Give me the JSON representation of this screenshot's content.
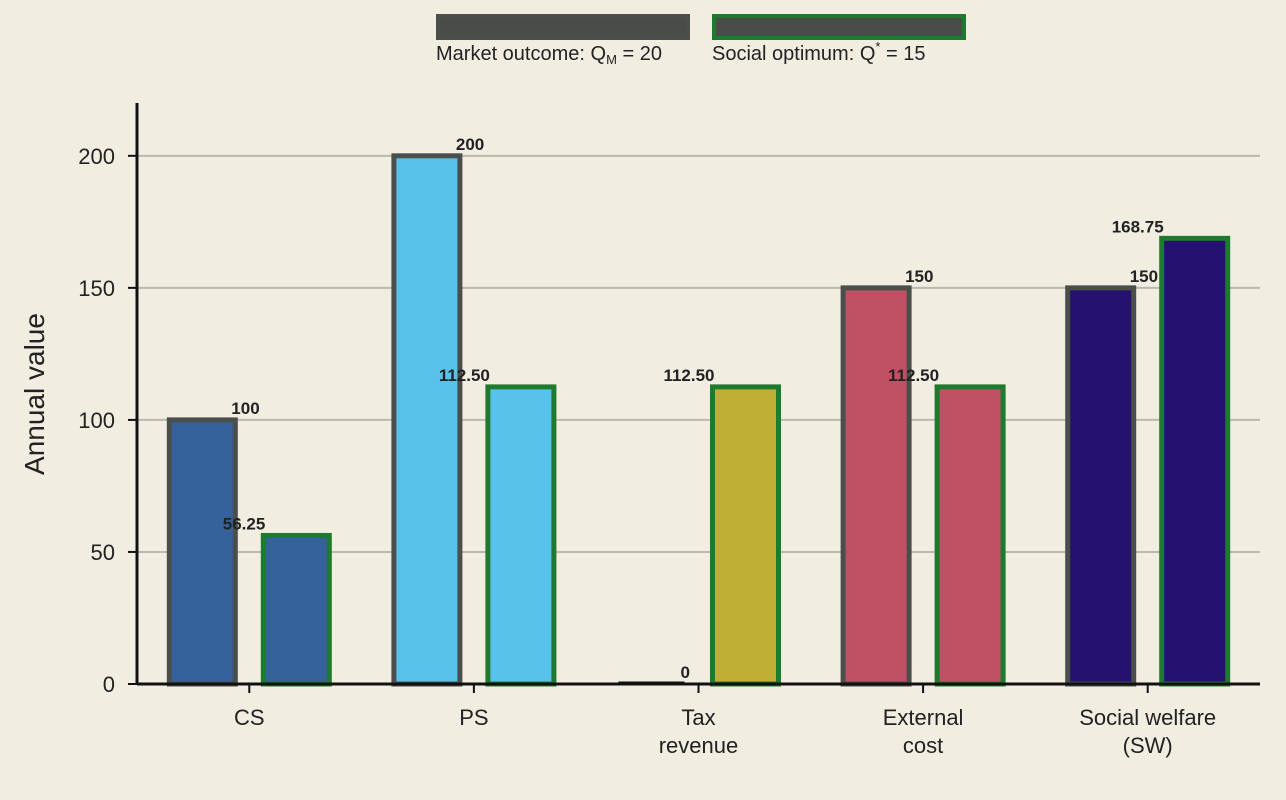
{
  "chart_data": {
    "type": "bar",
    "ylabel": "Annual value",
    "ylim": [
      0,
      220
    ],
    "yticks": [
      0,
      50,
      100,
      150,
      200
    ],
    "grid": true,
    "legend_position": "top-center",
    "categories": [
      {
        "lines": [
          "CS"
        ],
        "color": "#35629a"
      },
      {
        "lines": [
          "PS"
        ],
        "color": "#59c2eb"
      },
      {
        "lines": [
          "Tax",
          "revenue"
        ],
        "color": "#bfb035"
      },
      {
        "lines": [
          "External",
          "cost"
        ],
        "color": "#c05064"
      },
      {
        "lines": [
          "Social welfare",
          "(SW)"
        ],
        "color": "#241170"
      }
    ],
    "series": [
      {
        "name": "Market outcome: Q_M = 20",
        "legend": {
          "prefix": "Market outcome: Q",
          "sub": "M",
          "sup": "",
          "suffix": " = 20"
        },
        "edge_color": "#4a4f4c",
        "values": [
          100,
          200,
          0,
          150,
          150
        ],
        "labels": [
          "100",
          "200",
          "0",
          "150",
          "150"
        ]
      },
      {
        "name": "Social optimum: Q* = 15",
        "legend": {
          "prefix": "Social optimum: Q",
          "sub": "",
          "sup": "*",
          "suffix": " = 15"
        },
        "edge_color": "#1e7a2e",
        "values": [
          56.25,
          112.5,
          112.5,
          112.5,
          168.75
        ],
        "labels": [
          "56.25",
          "112.50",
          "112.50",
          "112.50",
          "168.75"
        ]
      }
    ],
    "colors": {
      "background": "#f1ede1",
      "legend_swatch_fill": "#4a4c4a",
      "grid": "#bcb8ad",
      "axis": "#111111"
    }
  }
}
